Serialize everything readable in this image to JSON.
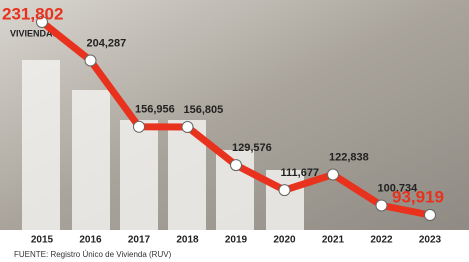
{
  "chart_data": {
    "type": "line",
    "unit_label": "VIVIENDAS",
    "categories": [
      "2015",
      "2016",
      "2017",
      "2018",
      "2019",
      "2020",
      "2021",
      "2022",
      "2023"
    ],
    "series": [
      {
        "color": "#e8321e",
        "values": [
          231802,
          204287,
          156956,
          156805,
          129576,
          111677,
          122838,
          100734,
          93919
        ],
        "value_labels": [
          "231,802",
          "204,287",
          "156,956",
          "156,805",
          "129,576",
          "111,677",
          "122,838",
          "100,734",
          "93,919"
        ]
      }
    ],
    "source": "FUENTE: Registro Único de Vivienda (RUV)"
  }
}
